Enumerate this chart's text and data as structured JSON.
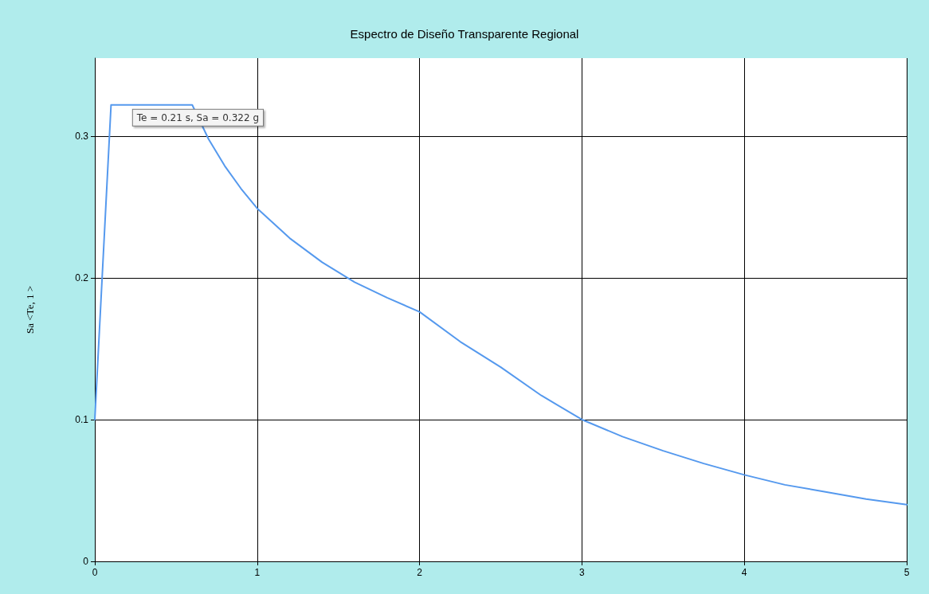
{
  "chart_data": {
    "type": "line",
    "title": "Espectro de Diseño Transparente Regional",
    "ylabel": "Sa <Te, 1 >",
    "x": [
      0,
      0.1,
      0.6,
      0.7,
      0.8,
      0.9,
      1.0,
      1.2,
      1.4,
      1.6,
      1.8,
      2.0,
      2.25,
      2.5,
      2.75,
      3.0,
      3.25,
      3.5,
      3.75,
      4.0,
      4.25,
      4.5,
      4.75,
      5.0
    ],
    "series": [
      {
        "color": "#5599ee",
        "values": [
          0.1,
          0.322,
          0.322,
          0.298,
          0.279,
          0.263,
          0.249,
          0.228,
          0.211,
          0.197,
          0.186,
          0.176,
          0.155,
          0.137,
          0.117,
          0.1,
          0.088,
          0.078,
          0.069,
          0.061,
          0.054,
          0.049,
          0.044,
          0.04
        ]
      }
    ],
    "xlim": [
      0,
      5
    ],
    "xticks": [
      0,
      1,
      2,
      3,
      4,
      5
    ],
    "ylim": [
      0,
      0.355
    ],
    "yticks": [
      0,
      0.1,
      0.2,
      0.3
    ],
    "grid": true,
    "marker": "none",
    "line_style": "solid",
    "annotations": [
      {
        "text": "Te = 0.21 s, Sa = 0.322 g",
        "x": 0.21,
        "y": 0.322
      }
    ]
  }
}
